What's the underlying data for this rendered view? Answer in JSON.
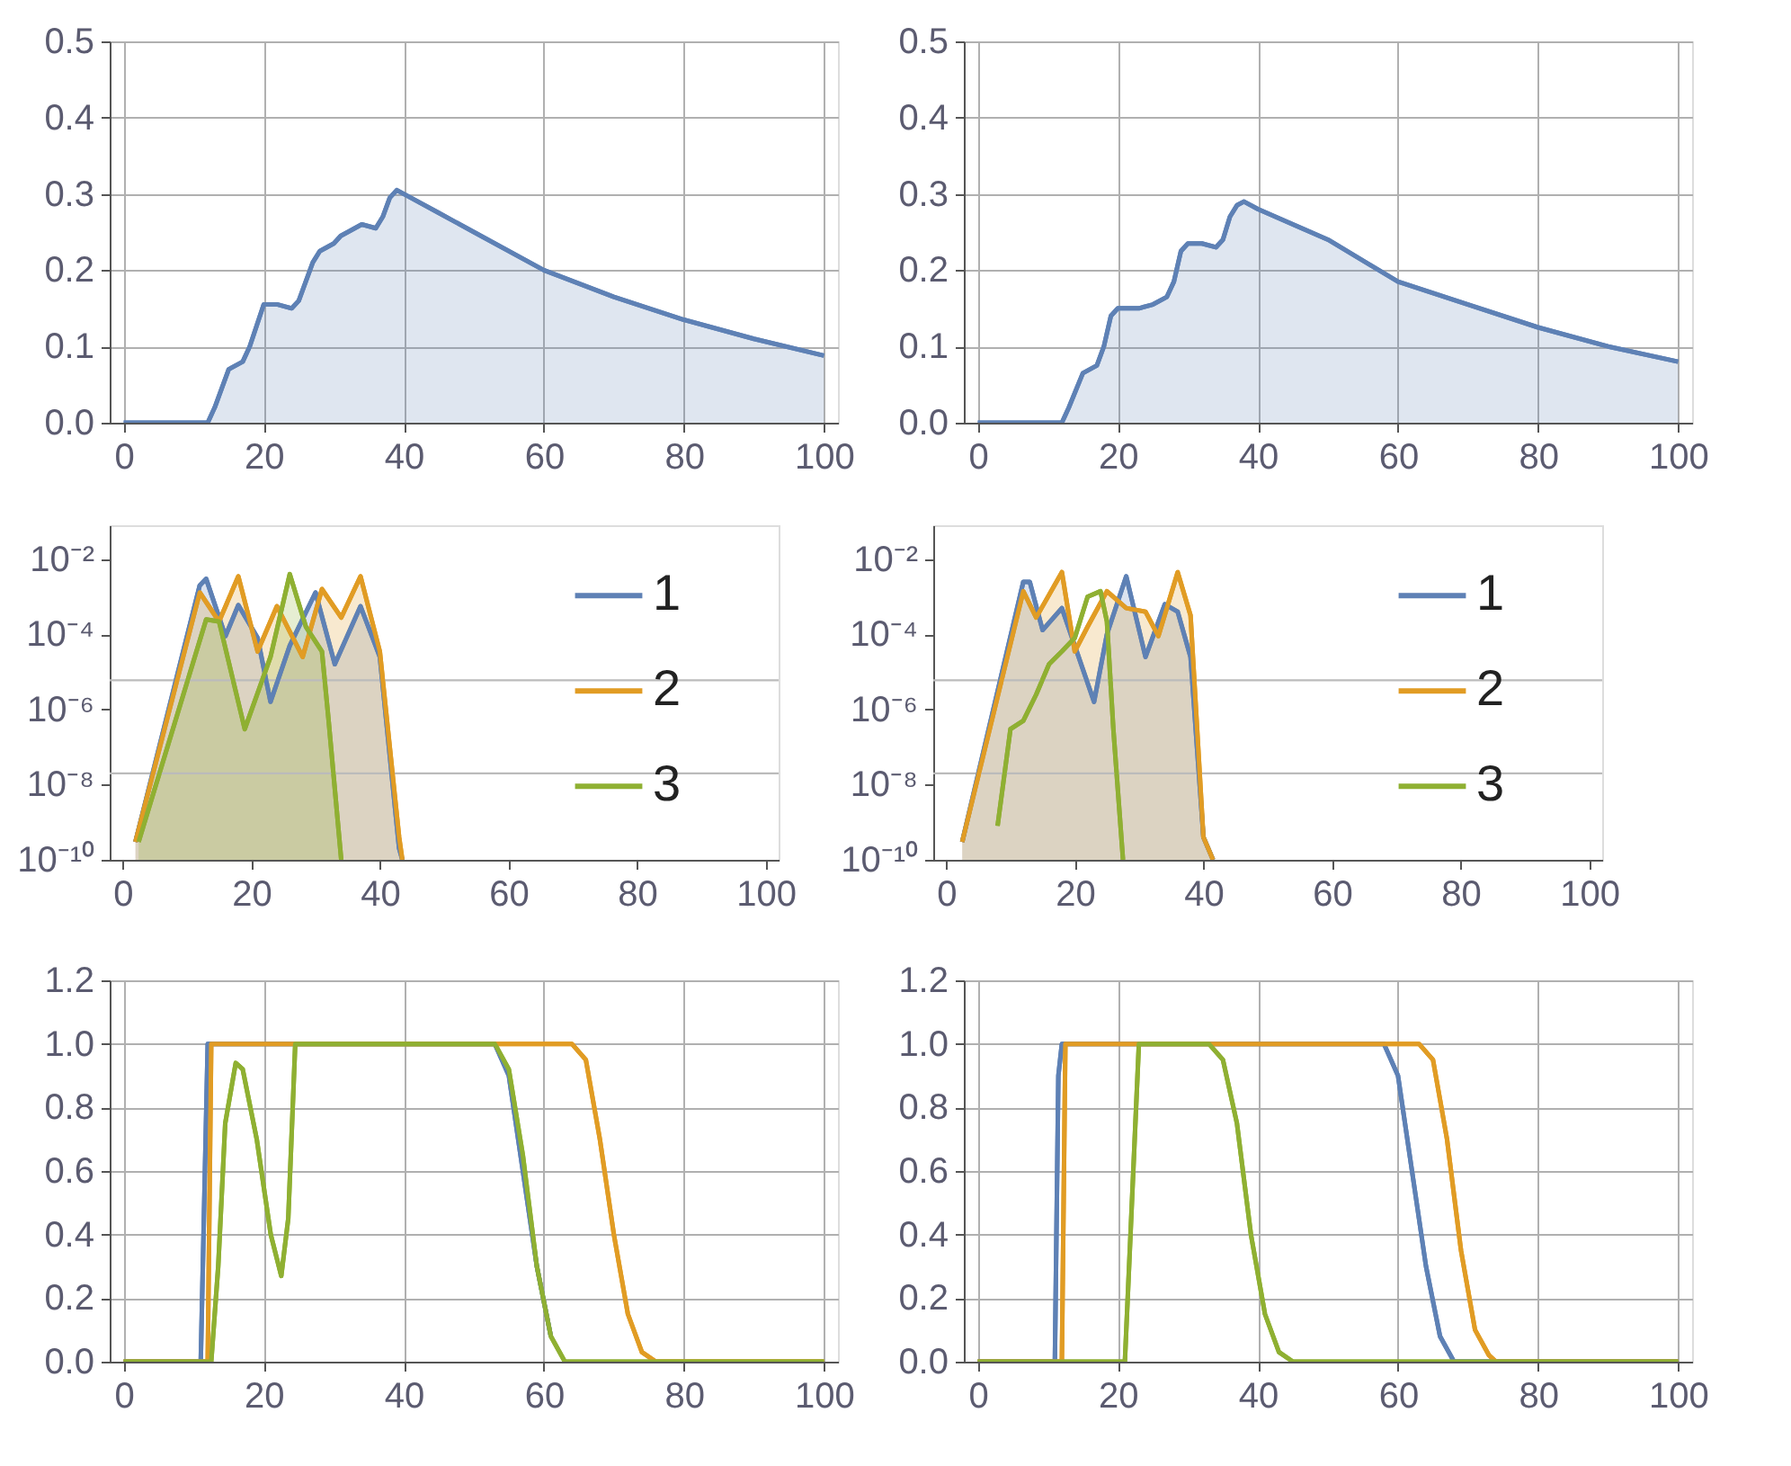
{
  "chart_data": [
    {
      "type": "area",
      "x": [
        0,
        12,
        13,
        15,
        17,
        18,
        20,
        22,
        24,
        25,
        27,
        28,
        30,
        31,
        33,
        34,
        36,
        37,
        38,
        39,
        40,
        45,
        50,
        60,
        70,
        80,
        90,
        100
      ],
      "values": [
        0,
        0,
        0.02,
        0.07,
        0.08,
        0.1,
        0.155,
        0.155,
        0.15,
        0.16,
        0.21,
        0.225,
        0.235,
        0.245,
        0.255,
        0.26,
        0.255,
        0.27,
        0.295,
        0.305,
        0.3,
        0.275,
        0.25,
        0.2,
        0.165,
        0.135,
        0.11,
        0.088
      ],
      "color": "#5e81b5",
      "xlim": [
        -2,
        102
      ],
      "ylim": [
        0,
        0.5
      ],
      "xticks": [
        0,
        20,
        40,
        60,
        80,
        100
      ],
      "yticks": [
        {
          "value": 0,
          "label": "0.0"
        },
        0.1,
        0.2,
        0.3,
        0.4,
        0.5
      ],
      "grid": true
    },
    {
      "type": "area",
      "x": [
        0,
        12,
        13,
        15,
        17,
        18,
        19,
        20,
        23,
        25,
        27,
        28,
        29,
        30,
        32,
        34,
        35,
        36,
        37,
        38,
        40,
        50,
        60,
        70,
        80,
        90,
        100
      ],
      "values": [
        0,
        0,
        0.02,
        0.065,
        0.075,
        0.1,
        0.14,
        0.15,
        0.15,
        0.155,
        0.165,
        0.185,
        0.225,
        0.235,
        0.235,
        0.23,
        0.24,
        0.27,
        0.285,
        0.29,
        0.28,
        0.24,
        0.185,
        0.155,
        0.125,
        0.1,
        0.08
      ],
      "color": "#5e81b5",
      "xlim": [
        -2,
        102
      ],
      "ylim": [
        0,
        0.5
      ],
      "xticks": [
        0,
        20,
        40,
        60,
        80,
        100
      ],
      "yticks": [
        {
          "value": 0,
          "label": "0.0"
        },
        0.1,
        0.2,
        0.3,
        0.4,
        0.5
      ],
      "grid": true
    },
    {
      "type": "area",
      "log": "y",
      "legend": "right",
      "xlim": [
        -2,
        102
      ],
      "ylim": [
        1e-10,
        0.08
      ],
      "xticks": [
        0,
        20,
        40,
        60,
        80,
        100
      ],
      "yticks": [
        {
          "value": 0.01,
          "label": "10⁻²"
        },
        {
          "value": 0.0001,
          "label": "10⁻⁴"
        },
        {
          "value": 1e-06,
          "label": "10⁻⁶"
        },
        {
          "value": 1e-08,
          "label": "10⁻⁸"
        },
        {
          "value": 1e-10,
          "label": "10⁻¹⁰"
        }
      ],
      "ref_lines": [
        {
          "axis": "y",
          "value": 6e-06,
          "color": "#bbbbbb"
        },
        {
          "axis": "y",
          "value": 2e-08,
          "color": "#bbbbbb"
        }
      ],
      "series": [
        {
          "name": "1",
          "color": "#5e81b5",
          "x": [
            2,
            12,
            13,
            16,
            18,
            21,
            23,
            26,
            30,
            33,
            37,
            40,
            43,
            43.5
          ],
          "values": [
            3e-10,
            0.002,
            0.003,
            9e-05,
            0.0006,
            8e-05,
            1.6e-06,
            5e-05,
            0.0013,
            1.6e-05,
            0.00056,
            2.5e-05,
            2e-10,
            1e-10
          ]
        },
        {
          "name": "2",
          "color": "#e19c24",
          "x": [
            2,
            12,
            15,
            18,
            21,
            24,
            28,
            31,
            34,
            37,
            40,
            43,
            43.5
          ],
          "values": [
            3e-10,
            0.0013,
            0.00022,
            0.0035,
            3.5e-05,
            0.00056,
            2.5e-05,
            0.0016,
            0.00028,
            0.0035,
            3.5e-05,
            4e-10,
            1e-10
          ]
        },
        {
          "name": "3",
          "color": "#8fb032",
          "x": [
            2.5,
            13,
            15,
            19,
            23,
            26,
            28.5,
            31,
            32,
            34
          ],
          "values": [
            3e-10,
            0.00025,
            0.00022,
            3e-07,
            2.5e-05,
            0.004,
            0.00016,
            3.5e-05,
            6e-07,
            1e-10
          ]
        }
      ]
    },
    {
      "type": "area",
      "log": "y",
      "legend": "right",
      "xlim": [
        -2,
        102
      ],
      "ylim": [
        1e-10,
        0.08
      ],
      "xticks": [
        0,
        20,
        40,
        60,
        80,
        100
      ],
      "yticks": [
        {
          "value": 0.01,
          "label": "10⁻²"
        },
        {
          "value": 0.0001,
          "label": "10⁻⁴"
        },
        {
          "value": 1e-06,
          "label": "10⁻⁶"
        },
        {
          "value": 1e-08,
          "label": "10⁻⁸"
        },
        {
          "value": 1e-10,
          "label": "10⁻¹⁰"
        }
      ],
      "ref_lines": [
        {
          "axis": "y",
          "value": 6e-06,
          "color": "#bbbbbb"
        },
        {
          "axis": "y",
          "value": 2e-08,
          "color": "#bbbbbb"
        }
      ],
      "series": [
        {
          "name": "1",
          "color": "#5e81b5",
          "x": [
            2.5,
            12,
            13,
            15,
            18,
            20,
            23,
            25,
            28,
            31,
            34,
            36,
            38,
            40,
            41.5
          ],
          "values": [
            3e-10,
            0.0025,
            0.0025,
            0.00013,
            0.0005,
            5e-05,
            1.6e-06,
            0.0001,
            0.0035,
            2.5e-05,
            0.00063,
            0.0004,
            2.5e-05,
            4e-10,
            1e-10
          ]
        },
        {
          "name": "2",
          "color": "#e19c24",
          "x": [
            2.5,
            12,
            14,
            18,
            20,
            22,
            25,
            28,
            31,
            33,
            36,
            38,
            40,
            41.5
          ],
          "values": [
            3e-10,
            0.0014,
            0.00028,
            0.0045,
            3.5e-05,
            0.00016,
            0.0014,
            0.0005,
            0.0004,
            9e-05,
            0.0045,
            0.00032,
            4e-10,
            1e-10
          ]
        },
        {
          "name": "3",
          "color": "#8fb032",
          "type": "line",
          "x": [
            8,
            10,
            12,
            14,
            16,
            18,
            20,
            22,
            24,
            25,
            26,
            27.5
          ],
          "values": [
            8e-10,
            3e-07,
            5e-07,
            2.5e-06,
            1.6e-05,
            3.5e-05,
            8e-05,
            0.001,
            0.0014,
            0.00022,
            3e-07,
            1e-10
          ]
        }
      ]
    },
    {
      "type": "line",
      "xlim": [
        -2,
        102
      ],
      "ylim": [
        0,
        1.2
      ],
      "xticks": [
        0,
        20,
        40,
        60,
        80,
        100
      ],
      "yticks": [
        {
          "value": 0,
          "label": "0.0"
        },
        0.2,
        0.4,
        0.6,
        0.8,
        {
          "value": 1,
          "label": "1.0"
        },
        1.2
      ],
      "grid": true,
      "series": [
        {
          "color": "#5e81b5",
          "x": [
            0,
            11,
            12,
            53,
            55,
            57,
            59,
            61
          ],
          "values": [
            0,
            0,
            1,
            1,
            0.9,
            0.6,
            0.3,
            0.08
          ]
        },
        {
          "color": "#e19c24",
          "x": [
            0,
            12,
            12.5,
            64,
            66,
            68,
            70,
            72,
            74,
            76,
            100
          ],
          "values": [
            0,
            0,
            1,
            1,
            0.95,
            0.7,
            0.4,
            0.15,
            0.03,
            0,
            0
          ]
        },
        {
          "color": "#8fb032",
          "x": [
            0,
            12.5,
            13.5,
            14.5,
            16,
            17,
            19,
            21,
            22.5,
            23.5,
            24.5,
            53,
            55,
            57,
            59,
            61,
            63,
            100
          ],
          "values": [
            0,
            0,
            0.3,
            0.75,
            0.94,
            0.92,
            0.7,
            0.4,
            0.27,
            0.45,
            1,
            1,
            0.92,
            0.65,
            0.3,
            0.08,
            0,
            0
          ]
        }
      ]
    },
    {
      "type": "line",
      "xlim": [
        -2,
        102
      ],
      "ylim": [
        0,
        1.2
      ],
      "xticks": [
        0,
        20,
        40,
        60,
        80,
        100
      ],
      "yticks": [
        {
          "value": 0,
          "label": "0.0"
        },
        0.2,
        0.4,
        0.6,
        0.8,
        {
          "value": 1,
          "label": "1.0"
        },
        1.2
      ],
      "grid": true,
      "series": [
        {
          "color": "#5e81b5",
          "x": [
            0,
            11,
            11.5,
            12,
            58,
            60,
            62,
            64,
            66,
            68,
            100
          ],
          "values": [
            0,
            0,
            0.9,
            1,
            1,
            0.9,
            0.6,
            0.3,
            0.08,
            0,
            0
          ]
        },
        {
          "color": "#e19c24",
          "x": [
            0,
            12,
            12.5,
            63,
            65,
            67,
            69,
            71,
            73,
            74,
            100
          ],
          "values": [
            0,
            0,
            1,
            1,
            0.95,
            0.7,
            0.35,
            0.1,
            0.02,
            0,
            0
          ]
        },
        {
          "color": "#8fb032",
          "x": [
            0,
            21,
            22,
            23,
            33,
            35,
            37,
            39,
            41,
            43,
            45,
            100
          ],
          "values": [
            0,
            0,
            0.5,
            1,
            1,
            0.95,
            0.75,
            0.4,
            0.15,
            0.03,
            0,
            0
          ]
        }
      ]
    }
  ]
}
